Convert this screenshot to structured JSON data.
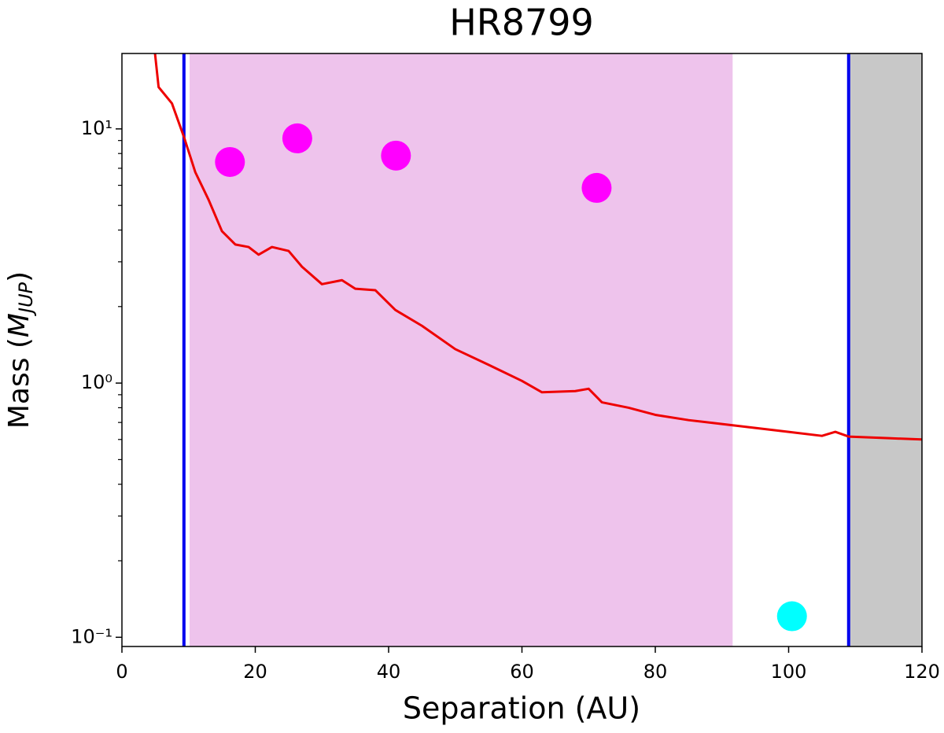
{
  "chart_data": {
    "type": "line",
    "title": "HR8799",
    "xlabel": "Separation (AU)",
    "ylabel": [
      "Mass (",
      "M",
      "JUP",
      ")"
    ],
    "xlim": [
      0,
      120
    ],
    "xticks": [
      0,
      20,
      40,
      60,
      80,
      100,
      120
    ],
    "yscale": "log",
    "ylim": [
      0.092,
      19.8
    ],
    "yticks": [
      {
        "value": 0.1,
        "label": "10⁻¹"
      },
      {
        "value": 1,
        "label": "10⁰"
      },
      {
        "value": 10,
        "label": "10¹"
      }
    ],
    "yminorticks": [
      0.2,
      0.3,
      0.4,
      0.5,
      0.6,
      0.7,
      0.8,
      0.9,
      2,
      3,
      4,
      5,
      6,
      7,
      8,
      9
    ],
    "spans": [
      {
        "x0": 10.15,
        "x1": 91.6,
        "color": "#eec3ec"
      },
      {
        "x0": 109,
        "x1": 120,
        "color": "#c8c8c8"
      }
    ],
    "vlines": [
      {
        "x": 9.3,
        "color": "#0000ee"
      },
      {
        "x": 109,
        "color": "#0000ee"
      }
    ],
    "series": [
      {
        "type": "line",
        "color": "#ee0000",
        "x": [
          4.96,
          5.5,
          7.5,
          9.3,
          11,
          13,
          15,
          17,
          19,
          20.5,
          22.5,
          25,
          27,
          30,
          33,
          35,
          38,
          41,
          45,
          50,
          55,
          60,
          63,
          68,
          70,
          72,
          76,
          80,
          85,
          90,
          95,
          100,
          105,
          107,
          109,
          115,
          120
        ],
        "values": [
          19.8,
          14.6,
          12.6,
          9.3,
          6.76,
          5.26,
          3.96,
          3.51,
          3.43,
          3.2,
          3.43,
          3.31,
          2.87,
          2.45,
          2.54,
          2.35,
          2.32,
          1.94,
          1.68,
          1.36,
          1.18,
          1.02,
          0.92,
          0.93,
          0.95,
          0.84,
          0.8,
          0.75,
          0.715,
          0.69,
          0.666,
          0.643,
          0.62,
          0.643,
          0.616,
          0.607,
          0.6
        ]
      },
      {
        "type": "scatter",
        "color": "#ff00ff",
        "x": [
          16.2,
          26.3,
          41.1,
          71.2
        ],
        "values": [
          7.41,
          9.18,
          7.85,
          5.86
        ]
      },
      {
        "type": "scatter",
        "color": "#00ffff",
        "x": [
          100.5
        ],
        "values": [
          0.121
        ]
      }
    ]
  }
}
